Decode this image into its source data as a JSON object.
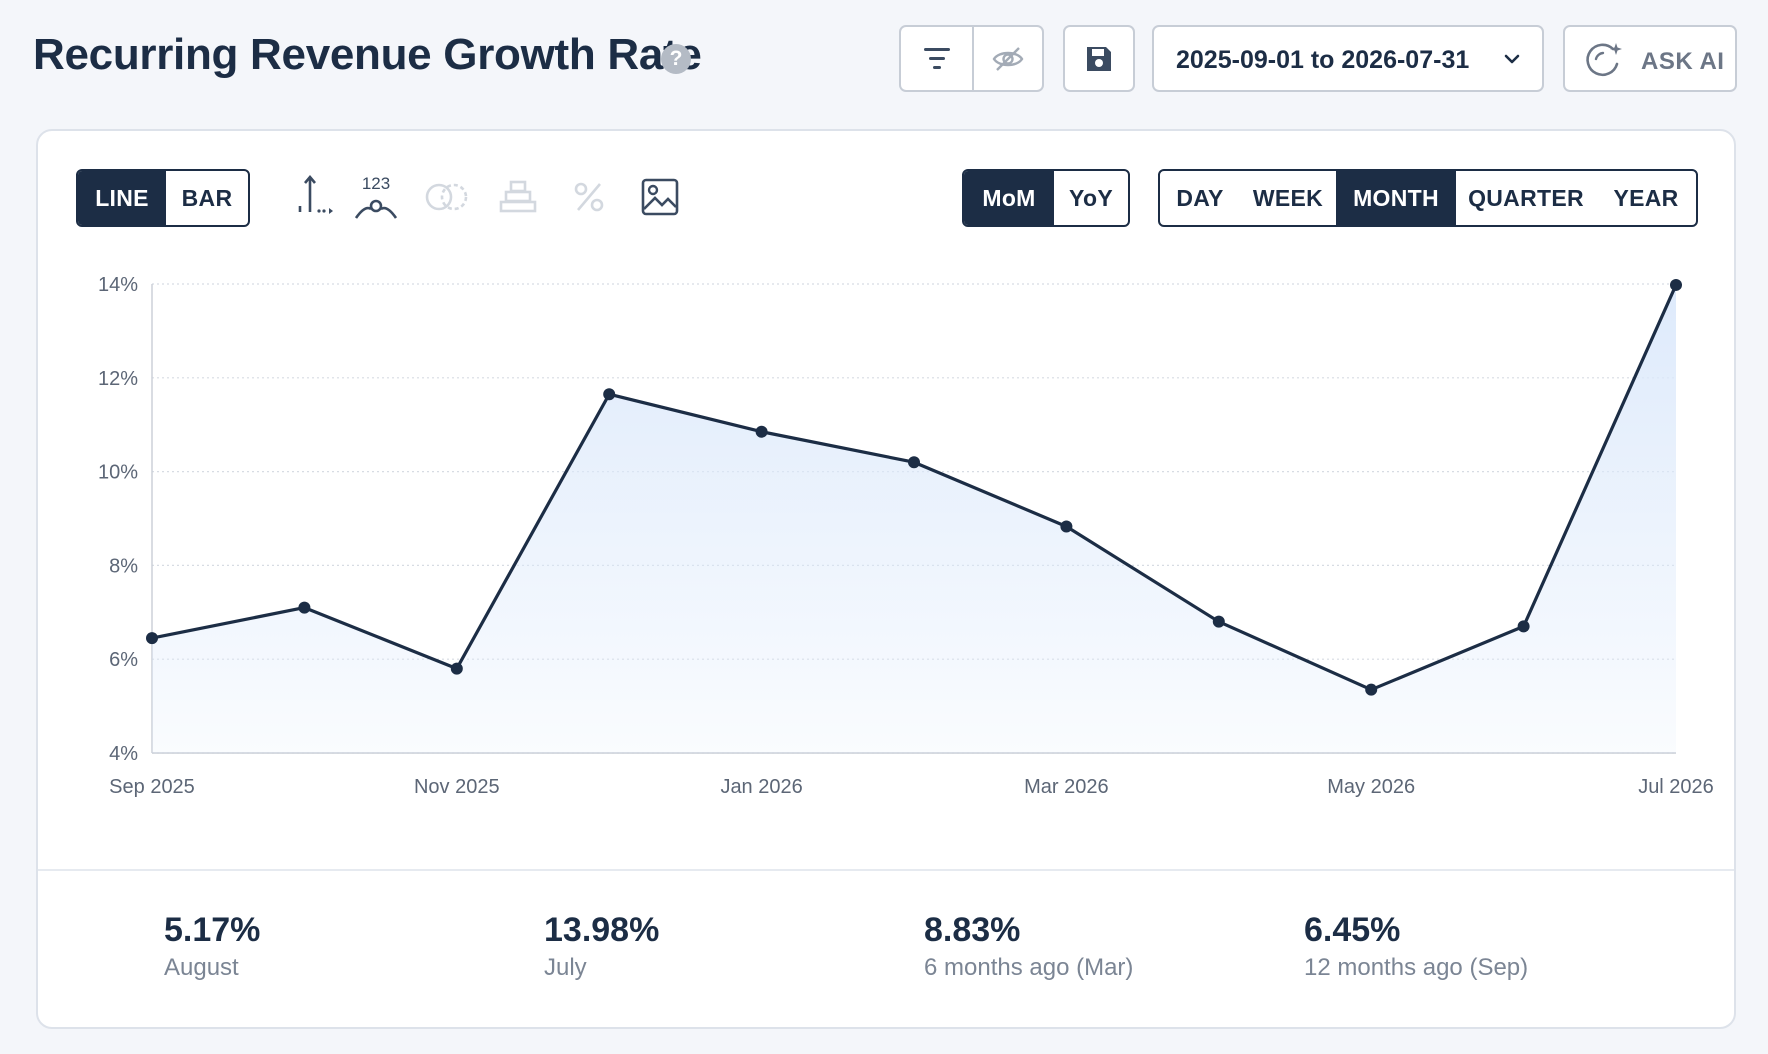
{
  "header": {
    "title": "Recurring Revenue Growth Rate",
    "help_glyph": "?",
    "date_range": "2025-09-01 to 2026-07-31",
    "ask_ai_label": "ASK AI"
  },
  "chart_type_toggle": [
    "LINE",
    "BAR"
  ],
  "tools": {
    "label_numbers": "123"
  },
  "comparison_toggle": [
    "MoM",
    "YoY"
  ],
  "granularity_toggle": [
    "DAY",
    "WEEK",
    "MONTH",
    "QUARTER",
    "YEAR"
  ],
  "chart_data": {
    "type": "area",
    "x": [
      "2025-09",
      "2025-10",
      "2025-11",
      "2025-12",
      "2026-01",
      "2026-02",
      "2026-03",
      "2026-04",
      "2026-05",
      "2026-06",
      "2026-07"
    ],
    "x_tick_labels": [
      "Sep 2025",
      "Nov 2025",
      "Jan 2026",
      "Mar 2026",
      "May 2026",
      "Jul 2026"
    ],
    "x_tick_indices": [
      0,
      2,
      4,
      6,
      8,
      10
    ],
    "values": [
      6.45,
      7.1,
      5.8,
      11.65,
      10.85,
      10.2,
      8.83,
      6.8,
      5.35,
      6.7,
      13.98
    ],
    "ylim": [
      4,
      14
    ],
    "y_ticks": [
      4,
      6,
      8,
      10,
      12,
      14
    ],
    "y_tick_labels": [
      "4%",
      "6%",
      "8%",
      "10%",
      "12%",
      "14%"
    ],
    "grid": true,
    "line_color": "#1c2d45",
    "fill_color": "#dce9fb"
  },
  "stats": [
    {
      "value": "5.17%",
      "label": "August"
    },
    {
      "value": "13.98%",
      "label": "July"
    },
    {
      "value": "8.83%",
      "label": "6 months ago (Mar)"
    },
    {
      "value": "6.45%",
      "label": "12 months ago (Sep)"
    }
  ],
  "colors": {
    "primary": "#1c2d45",
    "muted_text": "#7b8594",
    "border": "#c7cdd6"
  }
}
